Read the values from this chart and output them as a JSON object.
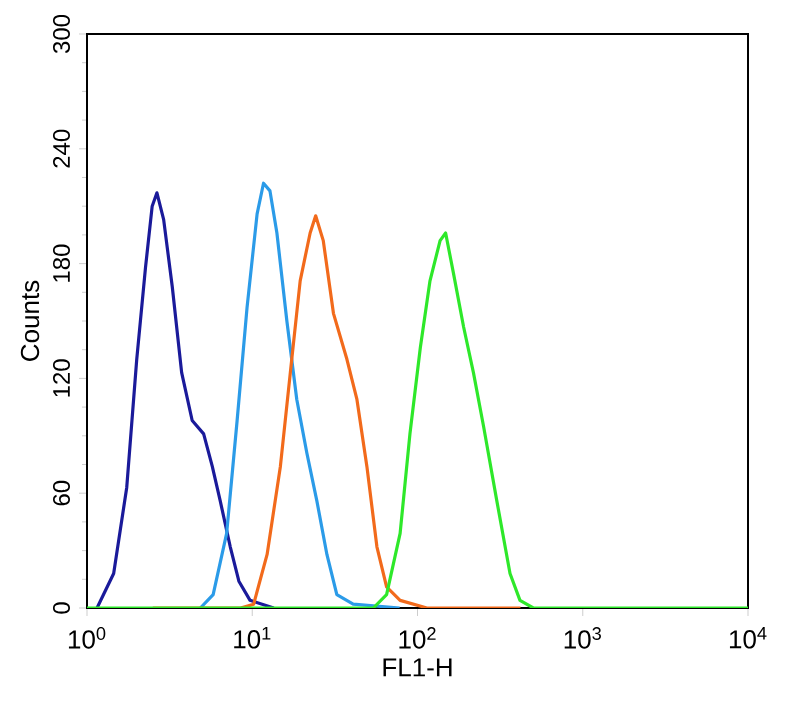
{
  "chart_data": {
    "type": "line",
    "xlabel": "FL1-H",
    "ylabel": "Counts",
    "log": "x",
    "grid": false,
    "marker": "none",
    "line_style": "solid",
    "xlim": [
      1,
      10000
    ],
    "ylim": [
      0,
      300
    ],
    "xticks": [
      {
        "value": 1,
        "label": "10$^{0}$"
      },
      {
        "value": 10,
        "label": "10$^{1}$"
      },
      {
        "value": 100,
        "label": "10$^{2}$"
      },
      {
        "value": 1000,
        "label": "10$^{3}$"
      },
      {
        "value": 10000,
        "label": "10$^{4}$"
      }
    ],
    "yticks": [
      0,
      60,
      120,
      180,
      240,
      300
    ],
    "series": [
      {
        "color": "#1a1a9a",
        "x": [
          1.15,
          1.45,
          1.74,
          2.0,
          2.26,
          2.48,
          2.65,
          2.91,
          3.28,
          3.74,
          4.33,
          5.08,
          5.73,
          6.4,
          7.36,
          8.3,
          9.7,
          13.5
        ],
        "values": [
          0,
          18,
          63,
          130,
          178,
          210,
          217,
          203,
          168,
          123,
          98,
          91,
          74,
          56,
          32,
          14,
          4,
          0
        ]
      },
      {
        "color": "#2b9be8",
        "x": [
          4.85,
          5.8,
          7.0,
          8.1,
          9.3,
          10.7,
          11.7,
          12.8,
          14.1,
          16.2,
          18.6,
          21.4,
          24.6,
          28.3,
          32.5,
          40.8,
          78
        ],
        "values": [
          0,
          7,
          39,
          98,
          157,
          206,
          222,
          218,
          196,
          150,
          109,
          81,
          56,
          28,
          7,
          2,
          0
        ]
      },
      {
        "color": "#f26a1b",
        "x": [
          2.5,
          8.5,
          10.2,
          12.3,
          14.8,
          17,
          19.5,
          22.4,
          24.2,
          26.9,
          31,
          37.4,
          43,
          49.4,
          56.8,
          65,
          78.5,
          114,
          420
        ],
        "values": [
          0,
          0,
          2,
          28,
          74,
          123,
          171,
          196,
          205,
          192,
          154,
          130,
          109,
          74,
          32,
          11,
          4,
          0,
          0
        ]
      },
      {
        "color": "#2ee82a",
        "x": [
          1,
          54,
          65,
          78.5,
          90,
          104,
          119,
          137,
          148,
          165,
          190,
          218,
          251,
          302,
          363,
          417,
          502,
          10000
        ],
        "values": [
          0,
          0,
          7,
          39,
          91,
          136,
          171,
          192,
          196,
          175,
          147,
          123,
          95,
          56,
          18,
          4,
          0,
          0
        ]
      }
    ]
  }
}
